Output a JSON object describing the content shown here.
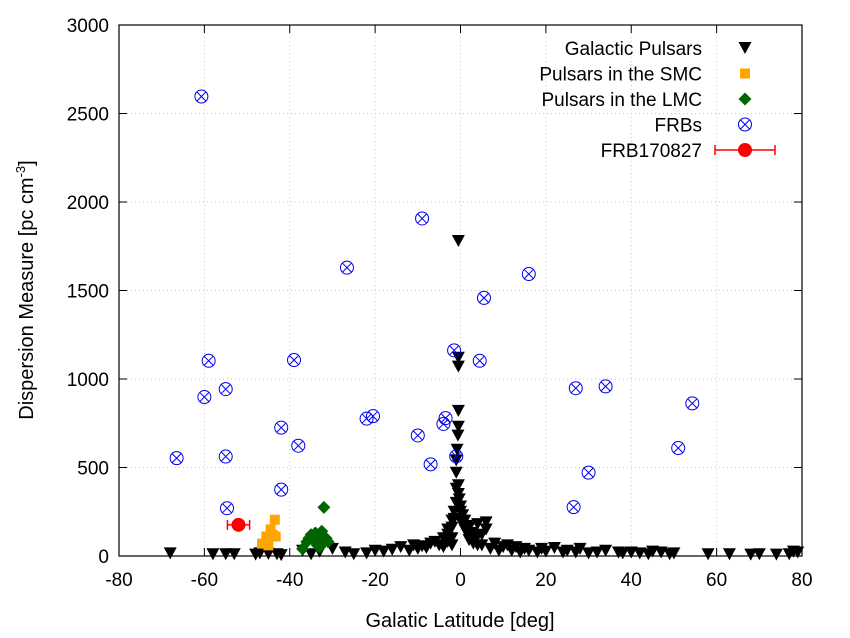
{
  "chart_data": {
    "type": "scatter",
    "xlabel": "Galatic Latitude [deg]",
    "ylabel_main": "Dispersion Measure [pc cm",
    "ylabel_sup": "-3",
    "ylabel_close": "]",
    "xlim": [
      -80,
      80
    ],
    "ylim": [
      0,
      3000
    ],
    "xticks": [
      -80,
      -60,
      -40,
      -20,
      0,
      20,
      40,
      60,
      80
    ],
    "yticks": [
      0,
      500,
      1000,
      1500,
      2000,
      2500,
      3000
    ],
    "grid": true,
    "legend_position": "top-right",
    "series": [
      {
        "name": "Galactic Pulsars",
        "marker": "triangle-down",
        "color": "#000000",
        "points": [
          [
            -68,
            15
          ],
          [
            -58,
            10
          ],
          [
            -55,
            10
          ],
          [
            -53,
            10
          ],
          [
            -48,
            8
          ],
          [
            -47,
            15
          ],
          [
            -45,
            12
          ],
          [
            -43,
            10
          ],
          [
            -42,
            5
          ],
          [
            -37,
            30
          ],
          [
            -35,
            10
          ],
          [
            -33,
            25
          ],
          [
            -30,
            40
          ],
          [
            -27,
            20
          ],
          [
            -25,
            10
          ],
          [
            -22,
            15
          ],
          [
            -20,
            30
          ],
          [
            -18,
            25
          ],
          [
            -16,
            35
          ],
          [
            -14,
            50
          ],
          [
            -12,
            30
          ],
          [
            -11,
            60
          ],
          [
            -10,
            40
          ],
          [
            -9,
            55
          ],
          [
            -8,
            45
          ],
          [
            -7,
            70
          ],
          [
            -6,
            80
          ],
          [
            -5,
            60
          ],
          [
            -4,
            100
          ],
          [
            -4,
            50
          ],
          [
            -3,
            150
          ],
          [
            -3,
            120
          ],
          [
            -3,
            80
          ],
          [
            -2,
            200
          ],
          [
            -2,
            160
          ],
          [
            -2,
            100
          ],
          [
            -2,
            60
          ],
          [
            -1.5,
            250
          ],
          [
            -1.5,
            210
          ],
          [
            -1,
            300
          ],
          [
            -1,
            380
          ],
          [
            -1,
            470
          ],
          [
            -1,
            540
          ],
          [
            -0.8,
            600
          ],
          [
            -0.6,
            680
          ],
          [
            -0.5,
            730
          ],
          [
            -0.5,
            820
          ],
          [
            -0.5,
            1070
          ],
          [
            -0.5,
            1120
          ],
          [
            -0.5,
            1780
          ],
          [
            -0.5,
            400
          ],
          [
            -0.5,
            350
          ],
          [
            -0.3,
            320
          ],
          [
            0,
            280
          ],
          [
            0,
            250
          ],
          [
            0,
            200
          ],
          [
            0.5,
            230
          ],
          [
            0.5,
            180
          ],
          [
            1,
            200
          ],
          [
            1,
            150
          ],
          [
            1.5,
            170
          ],
          [
            1.5,
            130
          ],
          [
            2,
            160
          ],
          [
            2,
            120
          ],
          [
            2,
            90
          ],
          [
            2.5,
            130
          ],
          [
            3,
            110
          ],
          [
            3,
            70
          ],
          [
            3.5,
            90
          ],
          [
            4,
            60
          ],
          [
            4,
            180
          ],
          [
            5,
            60
          ],
          [
            5,
            120
          ],
          [
            6,
            190
          ],
          [
            6,
            150
          ],
          [
            7,
            40
          ],
          [
            8,
            70
          ],
          [
            9,
            30
          ],
          [
            10,
            50
          ],
          [
            11,
            60
          ],
          [
            12,
            30
          ],
          [
            13,
            50
          ],
          [
            14,
            20
          ],
          [
            15,
            40
          ],
          [
            16,
            30
          ],
          [
            18,
            20
          ],
          [
            19,
            40
          ],
          [
            20,
            25
          ],
          [
            22,
            45
          ],
          [
            24,
            20
          ],
          [
            25,
            30
          ],
          [
            27,
            20
          ],
          [
            28,
            40
          ],
          [
            30,
            15
          ],
          [
            32,
            20
          ],
          [
            34,
            30
          ],
          [
            37,
            20
          ],
          [
            38,
            15
          ],
          [
            40,
            20
          ],
          [
            42,
            15
          ],
          [
            44,
            10
          ],
          [
            45,
            25
          ],
          [
            47,
            20
          ],
          [
            49,
            10
          ],
          [
            50,
            15
          ],
          [
            58,
            10
          ],
          [
            63,
            10
          ],
          [
            68,
            8
          ],
          [
            70,
            10
          ],
          [
            74,
            8
          ],
          [
            77,
            10
          ],
          [
            78,
            25
          ],
          [
            79,
            20
          ]
        ]
      },
      {
        "name": "Pulsars in the SMC",
        "marker": "square",
        "color": "#ffa500",
        "points": [
          [
            -46.5,
            70
          ],
          [
            -45.5,
            110
          ],
          [
            -44.5,
            150
          ],
          [
            -44,
            120
          ],
          [
            -43.5,
            205
          ],
          [
            -43.3,
            110
          ],
          [
            -45,
            60
          ]
        ]
      },
      {
        "name": "Pulsars in the LMC",
        "marker": "diamond",
        "color": "#006400",
        "points": [
          [
            -37,
            40
          ],
          [
            -36,
            80
          ],
          [
            -35.5,
            100
          ],
          [
            -35,
            120
          ],
          [
            -34.5,
            90
          ],
          [
            -34,
            130
          ],
          [
            -33.5,
            60
          ],
          [
            -33,
            110
          ],
          [
            -32.5,
            140
          ],
          [
            -32,
            90
          ],
          [
            -31.5,
            100
          ],
          [
            -31,
            80
          ],
          [
            -32,
            275
          ],
          [
            -33,
            50
          ]
        ]
      },
      {
        "name": "FRBs",
        "marker": "circle-x",
        "color": "#0000ee",
        "points": [
          [
            -60.7,
            2596
          ],
          [
            -66.5,
            553
          ],
          [
            -60,
            898
          ],
          [
            -59,
            1103
          ],
          [
            -55,
            943
          ],
          [
            -55,
            562
          ],
          [
            -54.7,
            270
          ],
          [
            -42,
            725
          ],
          [
            -42,
            375
          ],
          [
            -39,
            1107
          ],
          [
            -38,
            623
          ],
          [
            -26.6,
            1629
          ],
          [
            -22,
            776
          ],
          [
            -20.5,
            790
          ],
          [
            -9,
            1907
          ],
          [
            -10,
            681
          ],
          [
            -7,
            518
          ],
          [
            -4,
            746
          ],
          [
            -3.5,
            779
          ],
          [
            -1.5,
            1162
          ],
          [
            -1,
            563
          ],
          [
            4.5,
            1103
          ],
          [
            5.5,
            1458
          ],
          [
            16,
            1593
          ],
          [
            27,
            948
          ],
          [
            34,
            958
          ],
          [
            26.5,
            276
          ],
          [
            30,
            471
          ],
          [
            51,
            610
          ],
          [
            54.3,
            862
          ]
        ]
      },
      {
        "name": "FRB170827",
        "marker": "filled-circle-errorbar",
        "color": "#ff0000",
        "points": [
          [
            -52,
            176
          ]
        ],
        "xerr": 2.6
      }
    ]
  }
}
